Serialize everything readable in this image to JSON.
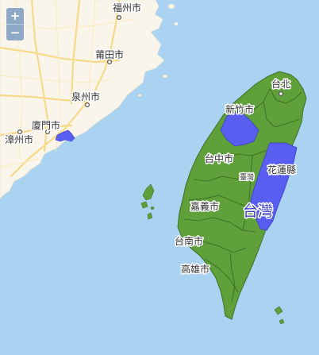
{
  "map": {
    "colors": {
      "water": "#a9d3f0",
      "mainland": "#f9f5ea",
      "island_fill": "#5fa03a",
      "highlight": "#5a5ef0",
      "road": "#f7d98a"
    },
    "zoom": {
      "in_label": "+",
      "out_label": "−"
    },
    "labels": {
      "fuzhou": "福州市",
      "putian": "莆田市",
      "quanzhou": "泉州市",
      "xiamen": "廈門市",
      "zhangzhou": "漳州市",
      "taipei": "台北",
      "hsinchu": "新竹市",
      "taichung": "台中市",
      "taiwan_region": "臺灣",
      "hualien": "花蓮縣",
      "chiayi": "嘉義市",
      "taiwan": "台灣",
      "tainan": "台南市",
      "kaohsiung": "高雄市"
    },
    "highlighted_regions": [
      "hsinchu-county",
      "hualien-county",
      "kinmen"
    ]
  }
}
